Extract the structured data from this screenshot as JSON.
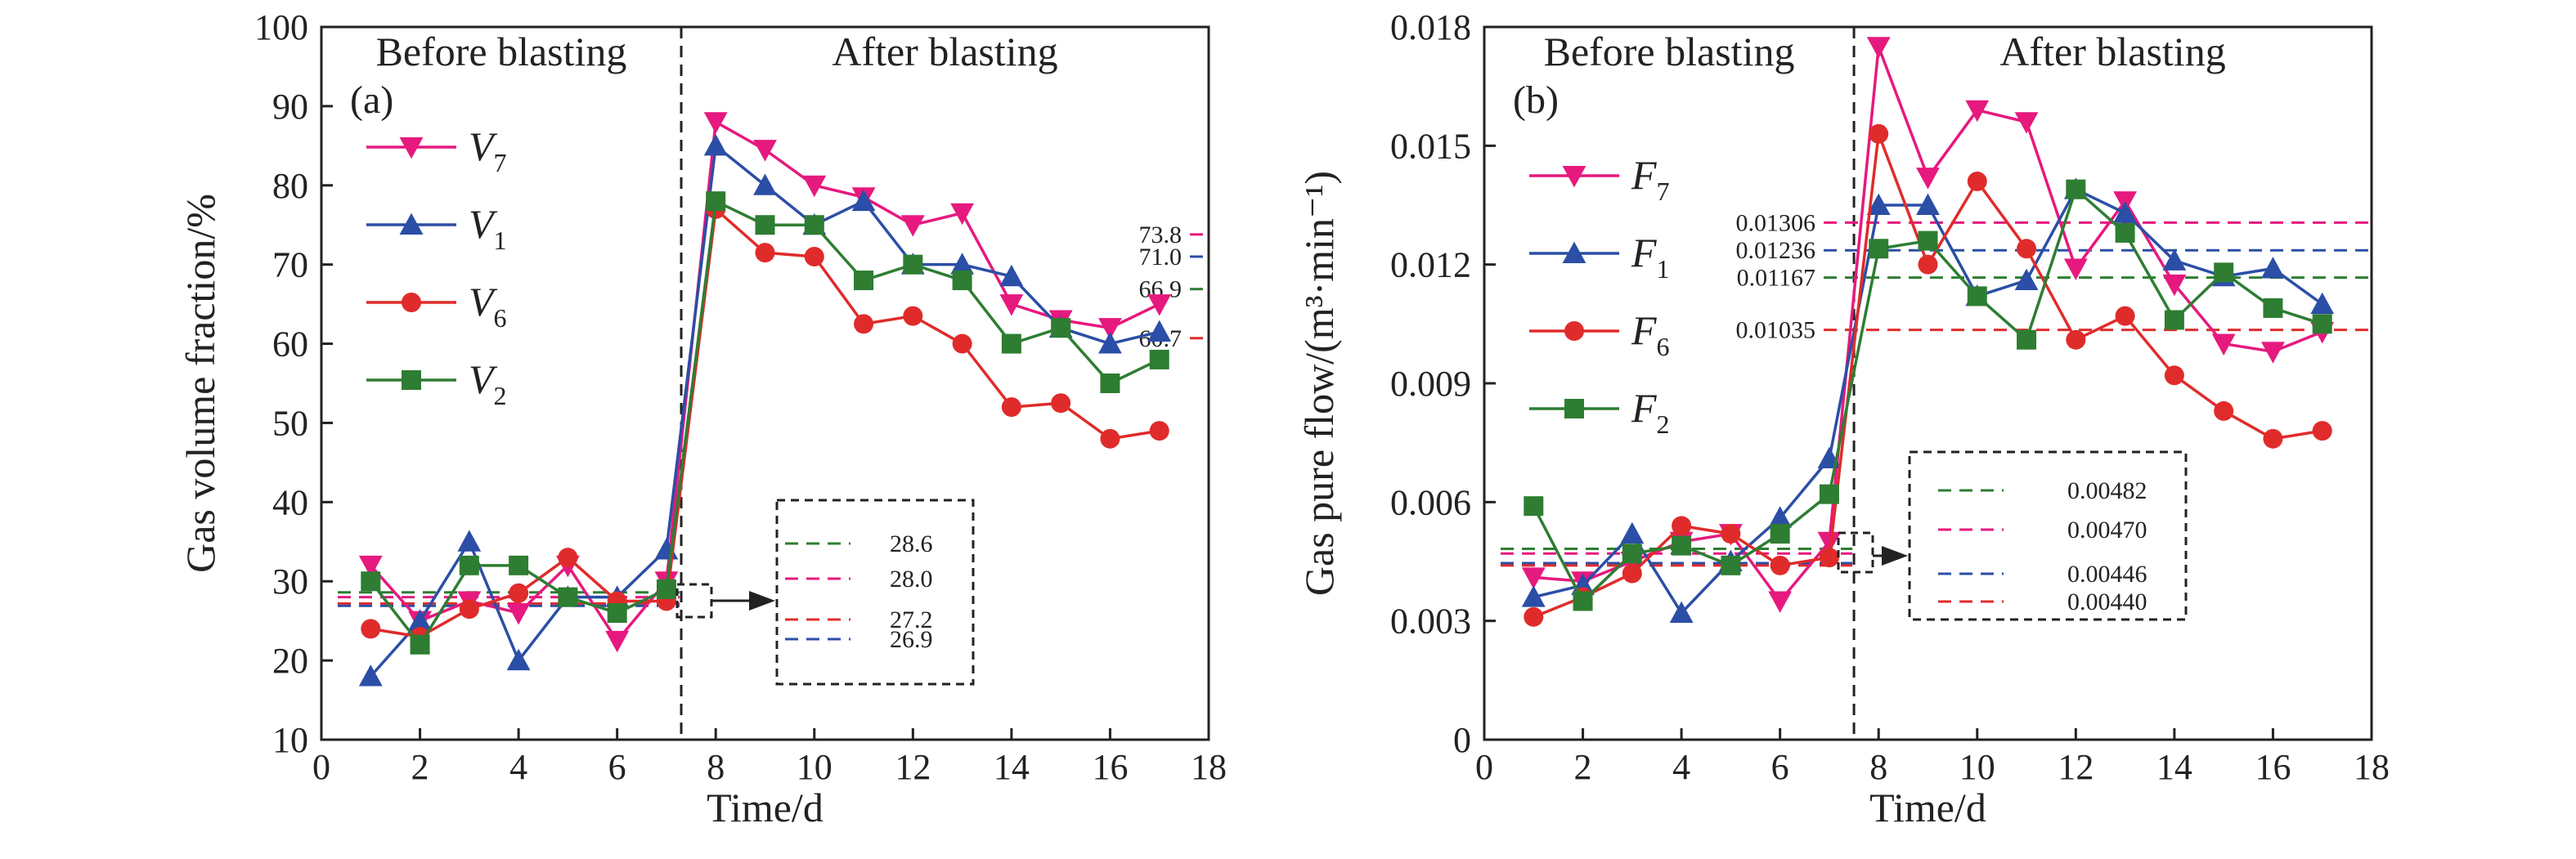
{
  "chart_data": [
    {
      "type": "line",
      "panel_label": "(a)",
      "xlabel": "Time/d",
      "ylabel": "Gas volume fraction/%",
      "xlim": [
        0,
        18
      ],
      "ylim": [
        10,
        100
      ],
      "xticks": [
        0,
        2,
        4,
        6,
        8,
        10,
        12,
        14,
        16,
        18
      ],
      "yticks": [
        10,
        20,
        30,
        40,
        50,
        60,
        70,
        80,
        90,
        100
      ],
      "divider_x": 7.3,
      "regions": [
        "Before blasting",
        "After blasting"
      ],
      "x": [
        1,
        2,
        3,
        4,
        5,
        6,
        7,
        8,
        9,
        10,
        11,
        12,
        13,
        14,
        15,
        16,
        17
      ],
      "series": [
        {
          "name": "V",
          "sub": "7",
          "color": "#e6197e",
          "marker": "triangle-down",
          "values": [
            32,
            25,
            27.5,
            26,
            32,
            22.5,
            30,
            88,
            84.5,
            80,
            78.5,
            75,
            76.5,
            65,
            63,
            62,
            65
          ]
        },
        {
          "name": "V",
          "sub": "1",
          "color": "#2b4ea6",
          "marker": "triangle-up",
          "values": [
            18,
            25,
            35,
            20,
            28,
            28,
            34,
            85,
            80,
            75,
            78,
            70,
            70,
            68.5,
            62,
            60,
            61.5
          ]
        },
        {
          "name": "V",
          "sub": "6",
          "color": "#e02b2b",
          "marker": "circle",
          "values": [
            24,
            23,
            26.5,
            28.5,
            33,
            27.5,
            27.5,
            77,
            71.5,
            71,
            62.5,
            63.5,
            60,
            52,
            52.5,
            48,
            49
          ]
        },
        {
          "name": "V",
          "sub": "2",
          "color": "#2e7d32",
          "marker": "square",
          "values": [
            30,
            22,
            32,
            32,
            28,
            26,
            29,
            78,
            75,
            75,
            68,
            70,
            68,
            60,
            62,
            55,
            58
          ]
        }
      ],
      "reference_lines_after": [
        {
          "label": "73.8",
          "value": 73.8,
          "color": "#e6197e"
        },
        {
          "label": "71.0",
          "value": 71.0,
          "color": "#2b4ea6"
        },
        {
          "label": "66.9",
          "value": 66.9,
          "color": "#2e7d32"
        },
        {
          "label": "60.7",
          "value": 60.7,
          "color": "#e02b2b"
        }
      ],
      "reference_lines_before": [
        {
          "label": "28.6",
          "value": 28.6,
          "color": "#2e7d32"
        },
        {
          "label": "28.0",
          "value": 28.0,
          "color": "#e6197e"
        },
        {
          "label": "27.2",
          "value": 27.2,
          "color": "#e02b2b"
        },
        {
          "label": "26.9",
          "value": 26.9,
          "color": "#2b4ea6"
        }
      ]
    },
    {
      "type": "line",
      "panel_label": "(b)",
      "xlabel": "Time/d",
      "ylabel": "Gas pure flow/(m³·min⁻¹)",
      "xlim": [
        0,
        18
      ],
      "ylim": [
        0,
        0.018
      ],
      "xticks": [
        0,
        2,
        4,
        6,
        8,
        10,
        12,
        14,
        16,
        18
      ],
      "yticks": [
        0,
        0.003,
        0.006,
        0.009,
        0.012,
        0.015,
        0.018
      ],
      "ytick_labels": [
        "0",
        "0.003",
        "0.006",
        "0.009",
        "0.012",
        "0.015",
        "0.018"
      ],
      "divider_x": 7.5,
      "regions": [
        "Before blasting",
        "After blasting"
      ],
      "x": [
        1,
        2,
        3,
        4,
        5,
        6,
        7,
        8,
        9,
        10,
        11,
        12,
        13,
        14,
        15,
        16,
        17
      ],
      "series": [
        {
          "name": "F",
          "sub": "7",
          "color": "#e6197e",
          "marker": "triangle-down",
          "values": [
            0.0041,
            0.004,
            0.0045,
            0.005,
            0.0052,
            0.0035,
            0.005,
            0.0175,
            0.0142,
            0.0159,
            0.0156,
            0.0119,
            0.0136,
            0.0115,
            0.01,
            0.0098,
            0.0103
          ]
        },
        {
          "name": "F",
          "sub": "1",
          "color": "#2b4ea6",
          "marker": "triangle-up",
          "values": [
            0.0036,
            0.0039,
            0.0052,
            0.0032,
            0.0045,
            0.0056,
            0.0071,
            0.0135,
            0.0135,
            0.0112,
            0.0116,
            0.0139,
            0.0133,
            0.0121,
            0.0117,
            0.0119,
            0.011
          ]
        },
        {
          "name": "F",
          "sub": "6",
          "color": "#e02b2b",
          "marker": "circle",
          "values": [
            0.0031,
            0.0036,
            0.0042,
            0.0054,
            0.0052,
            0.0044,
            0.0046,
            0.0153,
            0.012,
            0.0141,
            0.0124,
            0.0101,
            0.0107,
            0.0092,
            0.0083,
            0.0076,
            0.0078
          ]
        },
        {
          "name": "F",
          "sub": "2",
          "color": "#2e7d32",
          "marker": "square",
          "values": [
            0.0059,
            0.0035,
            0.0047,
            0.0049,
            0.0044,
            0.0052,
            0.0062,
            0.0124,
            0.0126,
            0.0112,
            0.0101,
            0.0139,
            0.0128,
            0.0106,
            0.0118,
            0.0109,
            0.0105
          ]
        }
      ],
      "reference_lines_after": [
        {
          "label": "0.01306",
          "value": 0.01306,
          "color": "#e6197e"
        },
        {
          "label": "0.01236",
          "value": 0.01236,
          "color": "#2b4ea6"
        },
        {
          "label": "0.01167",
          "value": 0.01167,
          "color": "#2e7d32"
        },
        {
          "label": "0.01035",
          "value": 0.01035,
          "color": "#e02b2b"
        }
      ],
      "reference_lines_before": [
        {
          "label": "0.00482",
          "value": 0.00482,
          "color": "#2e7d32"
        },
        {
          "label": "0.00470",
          "value": 0.0047,
          "color": "#e6197e"
        },
        {
          "label": "0.00446",
          "value": 0.00446,
          "color": "#2b4ea6"
        },
        {
          "label": "0.00440",
          "value": 0.0044,
          "color": "#e02b2b"
        }
      ]
    }
  ]
}
